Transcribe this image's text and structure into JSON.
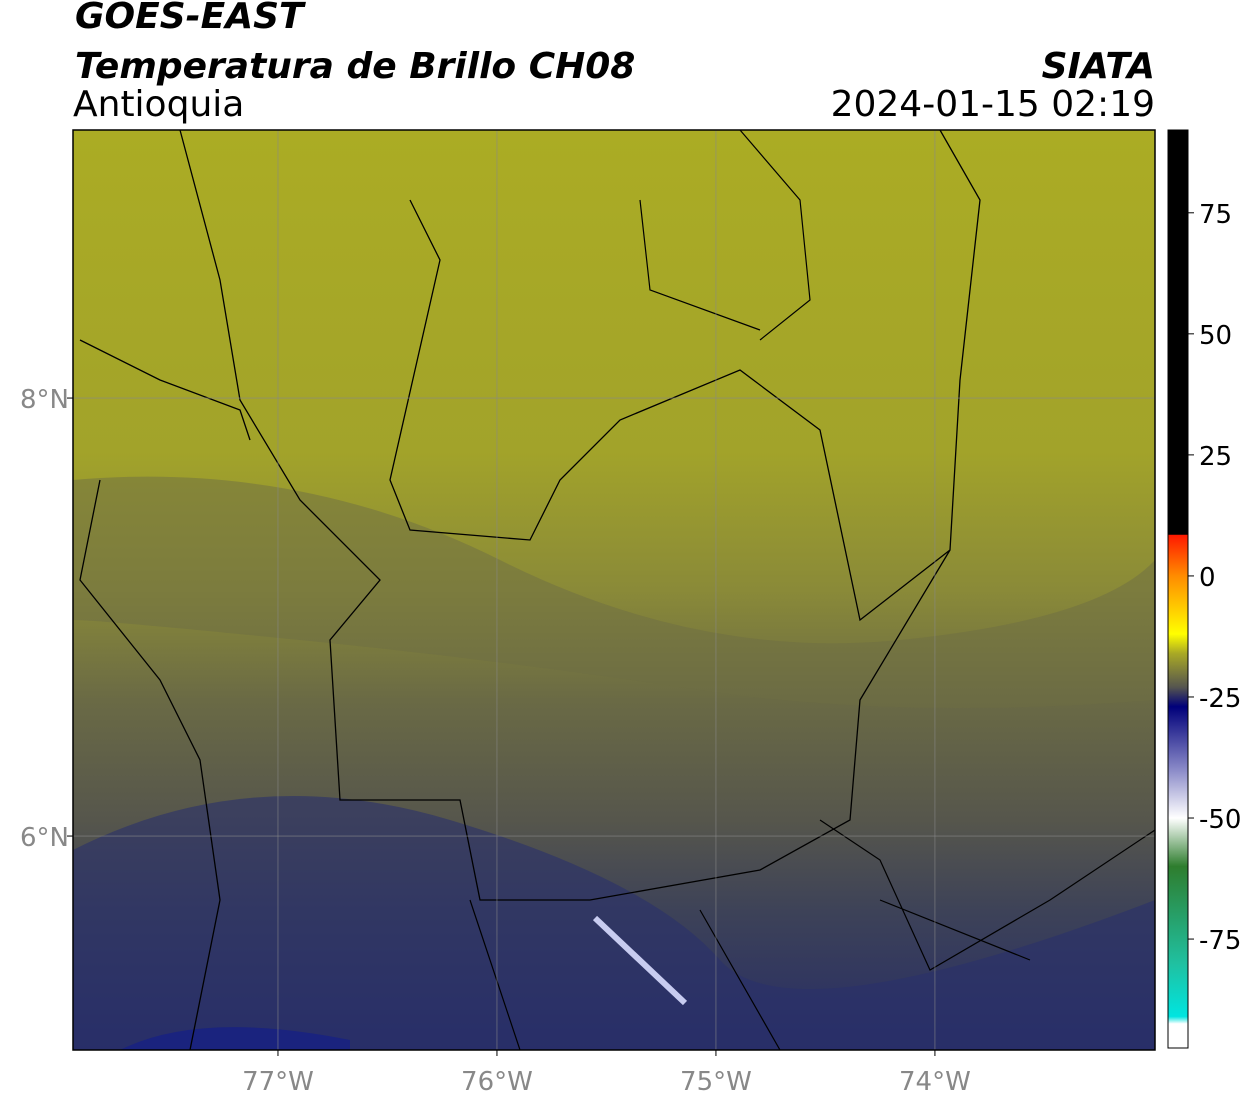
{
  "header": {
    "title": "GOES-EAST",
    "subtitle": "Temperatura de Brillo CH08",
    "region": "Antioquia",
    "source": "SIATA",
    "datetime": "2024-01-15 02:19"
  },
  "map": {
    "xlim": [
      -77.936,
      -72.995
    ],
    "ylim": [
      5.023,
      9.224
    ],
    "xticks": [
      {
        "value": -77,
        "label": "77°W"
      },
      {
        "value": -76,
        "label": "76°W"
      },
      {
        "value": -75,
        "label": "75°W"
      },
      {
        "value": -74,
        "label": "74°W"
      }
    ],
    "yticks": [
      {
        "value": 8,
        "label": "8°N"
      },
      {
        "value": 6,
        "label": "6°N"
      }
    ],
    "grid": true
  },
  "colorbar": {
    "lim": [
      -97.5,
      92.1
    ],
    "ticks": [
      75,
      50,
      25,
      0,
      -25,
      -50,
      -75
    ],
    "colormap": [
      {
        "value": 92.1,
        "color": "#000000"
      },
      {
        "value": 8.6,
        "color": "#000000"
      },
      {
        "value": 8.4,
        "color": "#ff1a00"
      },
      {
        "value": 0,
        "color": "#ff8c00"
      },
      {
        "value": -12,
        "color": "#ffff00"
      },
      {
        "value": -16,
        "color": "#a9a925"
      },
      {
        "value": -23,
        "color": "#55554f"
      },
      {
        "value": -27,
        "color": "#00007a"
      },
      {
        "value": -40,
        "color": "#8a8ac8"
      },
      {
        "value": -50,
        "color": "#ffffff"
      },
      {
        "value": -60,
        "color": "#2e7d2e"
      },
      {
        "value": -80,
        "color": "#20c0a0"
      },
      {
        "value": -91,
        "color": "#00e5e0"
      },
      {
        "value": -92.5,
        "color": "#ffffff"
      },
      {
        "value": -97.5,
        "color": "#ffffff"
      }
    ]
  }
}
